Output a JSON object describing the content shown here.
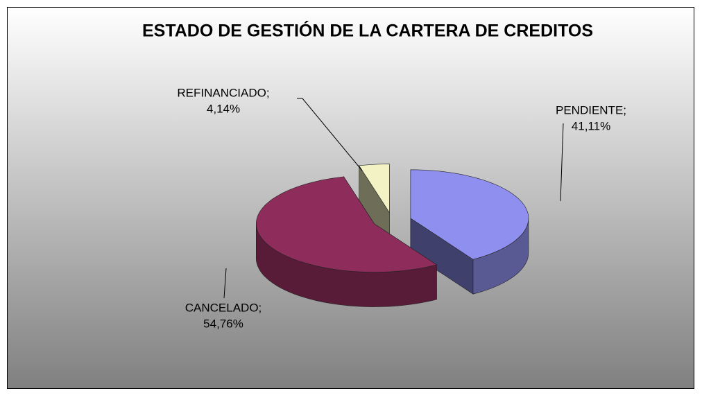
{
  "chart_data": {
    "type": "pie3d",
    "title": "ESTADO DE GESTIÓN DE LA CARTERA DE CREDITOS",
    "categories": [
      "PENDIENTE;",
      "CANCELADO;",
      "REFINANCIADO;"
    ],
    "values": [
      41.11,
      54.76,
      4.14
    ],
    "value_labels": [
      "41,11%",
      "54,76%",
      "4,14%"
    ],
    "colors": [
      "#8f8fef",
      "#8e2d5c",
      "#f2f2c4"
    ]
  }
}
